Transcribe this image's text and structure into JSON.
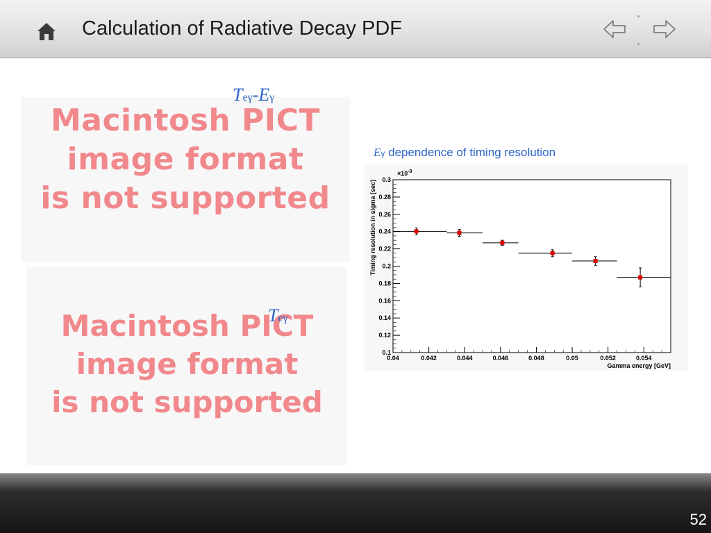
{
  "header": {
    "title": "Calculation of Radiative Decay PDF",
    "home_icon": "home-icon",
    "prev_icon": "arrow-left-icon",
    "next_icon": "arrow-right-icon"
  },
  "images": {
    "pict_placeholder_1": [
      "Macintosh PICT",
      "image format",
      "is not supported"
    ],
    "pict_placeholder_2": [
      "Macintosh PICT",
      "image format",
      "is not supported"
    ]
  },
  "labels": {
    "tey_ey": {
      "t": "T",
      "t_sub": "eγ",
      "dash": "-",
      "e": "E",
      "e_sub": "γ"
    },
    "tey": {
      "t": "T",
      "t_sub": "eγ"
    }
  },
  "chart_caption": {
    "symbol": "E",
    "symbol_sub": "γ",
    "text": " dependence of timing resolution"
  },
  "colors": {
    "accent_blue": "#2b63c6",
    "marker_red": "#dd0000",
    "pict_pink": "#f1888c"
  },
  "chart_data": {
    "type": "scatter",
    "title": "",
    "xlabel": "Gamma energy [GeV]",
    "ylabel": "Timing resolution in sigma [sec]",
    "y_exponent_label": "×10",
    "y_exponent": "-9",
    "xlim": [
      0.04,
      0.0555
    ],
    "ylim": [
      0.1,
      0.3
    ],
    "x_ticks": [
      "0.04",
      "0.042",
      "0.044",
      "0.046",
      "0.048",
      "0.05",
      "0.052",
      "0.054"
    ],
    "x_tick_values": [
      0.04,
      0.042,
      0.044,
      0.046,
      0.048,
      0.05,
      0.052,
      0.054
    ],
    "y_ticks": [
      "0.1",
      "0.12",
      "0.14",
      "0.16",
      "0.18",
      "0.2",
      "0.22",
      "0.24",
      "0.26",
      "0.28",
      "0.3"
    ],
    "y_tick_values": [
      0.1,
      0.12,
      0.14,
      0.16,
      0.18,
      0.2,
      0.22,
      0.24,
      0.26,
      0.28,
      0.3
    ],
    "series": [
      {
        "points": [
          {
            "x": 0.0413,
            "y": 0.2403,
            "xlo": 0.04,
            "xhi": 0.043,
            "yerr": 0.004
          },
          {
            "x": 0.0437,
            "y": 0.2385,
            "xlo": 0.043,
            "xhi": 0.045,
            "yerr": 0.004
          },
          {
            "x": 0.0461,
            "y": 0.227,
            "xlo": 0.045,
            "xhi": 0.047,
            "yerr": 0.003
          },
          {
            "x": 0.0489,
            "y": 0.215,
            "xlo": 0.047,
            "xhi": 0.05,
            "yerr": 0.004
          },
          {
            "x": 0.0513,
            "y": 0.206,
            "xlo": 0.05,
            "xhi": 0.0525,
            "yerr": 0.005
          },
          {
            "x": 0.0538,
            "y": 0.187,
            "xlo": 0.0525,
            "xhi": 0.0555,
            "yerr": 0.011
          }
        ]
      }
    ]
  },
  "footer": {
    "page_number": "52"
  }
}
